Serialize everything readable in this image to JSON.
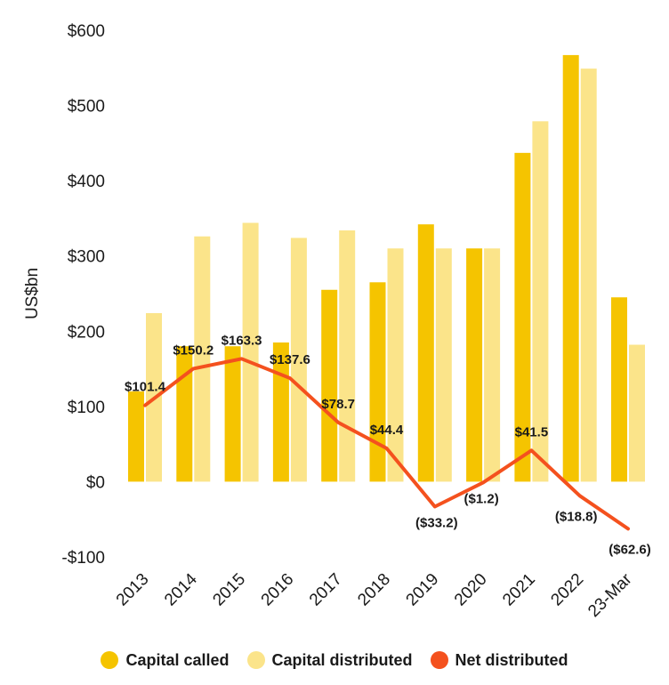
{
  "chart_data": {
    "type": "bar",
    "categories": [
      "2013",
      "2014",
      "2015",
      "2016",
      "2017",
      "2018",
      "2019",
      "2020",
      "2021",
      "2022",
      "23-Mar"
    ],
    "series": [
      {
        "name": "Capital called",
        "kind": "bar",
        "color": "#F5C400",
        "values": [
          120,
          180,
          180,
          185,
          255,
          265,
          342,
          310,
          437,
          567,
          245
        ]
      },
      {
        "name": "Capital distributed",
        "kind": "bar",
        "color": "#FBE48A",
        "values": [
          224,
          326,
          344,
          324,
          334,
          310,
          310,
          310,
          479,
          549,
          182
        ]
      },
      {
        "name": "Net distributed",
        "kind": "line",
        "color": "#F4511E",
        "values": [
          101.4,
          150.2,
          163.3,
          137.6,
          78.7,
          44.4,
          -33.2,
          -1.2,
          41.5,
          -18.8,
          -62.6
        ]
      }
    ],
    "data_labels": [
      "$101.4",
      "$150.2",
      "$163.3",
      "$137.6",
      "$78.7",
      "$44.4",
      "($33.2)",
      "($1.2)",
      "$41.5",
      "($18.8)",
      "($62.6)"
    ],
    "ylabel": "US$bn",
    "ylim": [
      -100,
      600
    ],
    "yticks": [
      -100,
      0,
      100,
      200,
      300,
      400,
      500,
      600
    ],
    "ytick_labels": [
      "-$100",
      "$0",
      "$100",
      "$200",
      "$300",
      "$400",
      "$500",
      "$600"
    ],
    "grid": false,
    "legend_position": "bottom"
  }
}
